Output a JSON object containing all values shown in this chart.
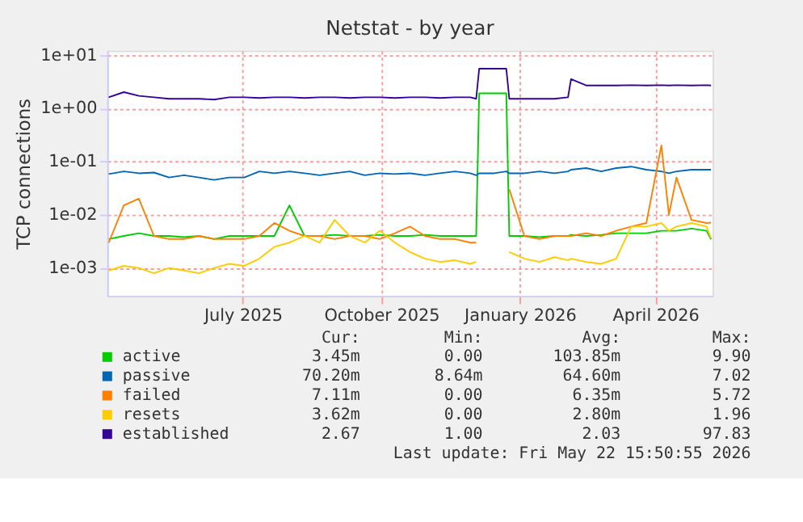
{
  "chart_data": {
    "type": "line",
    "title": "Netstat - by year",
    "ylabel": "TCP connections",
    "x": [
      "2025-04-03",
      "2025-04-13",
      "2025-04-23",
      "2025-05-03",
      "2025-05-13",
      "2025-05-23",
      "2025-06-02",
      "2025-06-12",
      "2025-06-22",
      "2025-07-02",
      "2025-07-12",
      "2025-07-22",
      "2025-08-01",
      "2025-08-11",
      "2025-08-21",
      "2025-08-31",
      "2025-09-10",
      "2025-09-20",
      "2025-09-30",
      "2025-10-10",
      "2025-10-20",
      "2025-10-30",
      "2025-11-09",
      "2025-11-19",
      "2025-11-29",
      "2025-12-03",
      "2025-12-05",
      "2025-12-15",
      "2025-12-23",
      "2025-12-25",
      "2026-01-04",
      "2026-01-14",
      "2026-01-24",
      "2026-02-02",
      "2026-02-04",
      "2026-02-14",
      "2026-02-24",
      "2026-03-06",
      "2026-03-16",
      "2026-03-26",
      "2026-04-05",
      "2026-04-10",
      "2026-04-15",
      "2026-04-25",
      "2026-05-05",
      "2026-05-08"
    ],
    "series": [
      {
        "name": "active",
        "color": "#00cc00",
        "values": [
          0.0035,
          0.004,
          0.0045,
          0.004,
          0.004,
          0.0038,
          0.004,
          0.0035,
          0.004,
          0.004,
          0.004,
          0.004,
          0.015,
          0.004,
          0.004,
          0.0042,
          0.004,
          0.004,
          0.0042,
          0.004,
          0.004,
          0.0042,
          0.004,
          0.004,
          0.004,
          0.004,
          1.9,
          1.9,
          1.9,
          0.004,
          0.004,
          0.0038,
          0.004,
          0.004,
          0.0042,
          0.004,
          0.0042,
          0.0045,
          0.0045,
          0.0045,
          0.005,
          0.005,
          0.005,
          0.0055,
          0.005,
          0.00345
        ]
      },
      {
        "name": "passive",
        "color": "#0066b3",
        "values": [
          0.058,
          0.065,
          0.06,
          0.062,
          0.05,
          0.055,
          0.05,
          0.045,
          0.05,
          0.05,
          0.065,
          0.06,
          0.065,
          0.06,
          0.055,
          0.06,
          0.065,
          0.055,
          0.06,
          0.058,
          0.06,
          0.055,
          0.06,
          0.065,
          0.06,
          0.055,
          0.06,
          0.06,
          0.065,
          0.06,
          0.06,
          0.065,
          0.06,
          0.065,
          0.07,
          0.075,
          0.065,
          0.075,
          0.08,
          0.07,
          0.065,
          0.06,
          0.065,
          0.07,
          0.07,
          0.0702
        ]
      },
      {
        "name": "failed",
        "color": "#ff8000",
        "values": [
          0.003,
          0.015,
          0.02,
          0.004,
          0.0035,
          0.0035,
          0.004,
          0.0035,
          0.0035,
          0.0035,
          0.004,
          0.007,
          0.005,
          0.004,
          0.004,
          0.0035,
          0.004,
          0.004,
          0.0035,
          0.0045,
          0.006,
          0.004,
          0.0035,
          0.0035,
          0.003,
          0.003,
          null,
          null,
          null,
          0.03,
          0.004,
          0.0035,
          0.004,
          0.004,
          0.004,
          0.0045,
          0.004,
          0.005,
          0.006,
          0.007,
          0.2,
          0.01,
          0.05,
          0.008,
          0.007,
          0.0071
        ]
      },
      {
        "name": "resets",
        "color": "#ffcc00",
        "values": [
          0.0009,
          0.0011,
          0.001,
          0.0008,
          0.001,
          0.0009,
          0.0008,
          0.001,
          0.0012,
          0.0011,
          0.0015,
          0.0025,
          0.003,
          0.004,
          0.003,
          0.008,
          0.004,
          0.003,
          0.005,
          0.003,
          0.002,
          0.0015,
          0.0013,
          0.0014,
          0.0012,
          0.0013,
          null,
          null,
          null,
          0.002,
          0.0015,
          0.0013,
          0.0016,
          0.0014,
          0.0015,
          0.0013,
          0.0012,
          0.0015,
          0.006,
          0.006,
          0.007,
          0.005,
          0.006,
          0.007,
          0.006,
          0.00362
        ]
      },
      {
        "name": "established",
        "color": "#330099",
        "values": [
          1.6,
          2.0,
          1.7,
          1.6,
          1.5,
          1.5,
          1.5,
          1.45,
          1.6,
          1.6,
          1.55,
          1.6,
          1.6,
          1.55,
          1.6,
          1.6,
          1.55,
          1.6,
          1.6,
          1.55,
          1.6,
          1.6,
          1.55,
          1.6,
          1.6,
          1.5,
          5.5,
          5.5,
          5.5,
          1.5,
          1.5,
          1.5,
          1.5,
          1.6,
          3.5,
          2.67,
          2.67,
          2.67,
          2.7,
          2.67,
          2.7,
          2.67,
          2.7,
          2.67,
          2.7,
          2.67
        ]
      }
    ],
    "xlim": [
      "2025-04-02",
      "2026-05-09"
    ],
    "xticks": [
      {
        "value": "2025-07-01",
        "label": "July 2025"
      },
      {
        "value": "2025-10-01",
        "label": "October 2025"
      },
      {
        "value": "2026-01-01",
        "label": "January 2026"
      },
      {
        "value": "2026-04-01",
        "label": "April 2026"
      }
    ],
    "ylim": [
      0.0003,
      12
    ],
    "yticks": [
      {
        "value": 0.001,
        "label": "1e-03"
      },
      {
        "value": 0.01,
        "label": "1e-02"
      },
      {
        "value": 0.1,
        "label": "1e-01"
      },
      {
        "value": 1,
        "label": "1e+00"
      },
      {
        "value": 10,
        "label": "1e+01"
      }
    ],
    "log": true,
    "grid": true,
    "legend": "bottom",
    "marker": "none",
    "line_style": "solid",
    "annotations": [
      "Cur:",
      "Min:",
      "Avg:",
      "Max:",
      "3.45m",
      "0.00",
      "103.85m",
      "9.90",
      "70.20m",
      "8.64m",
      "64.60m",
      "7.02",
      "7.11m",
      "0.00",
      "6.35m",
      "5.72",
      "3.62m",
      "0.00",
      "2.80m",
      "1.96",
      "2.67",
      "1.00",
      "2.03",
      "97.83",
      "Last update: Fri May 22 15:50:55 2026"
    ]
  }
}
